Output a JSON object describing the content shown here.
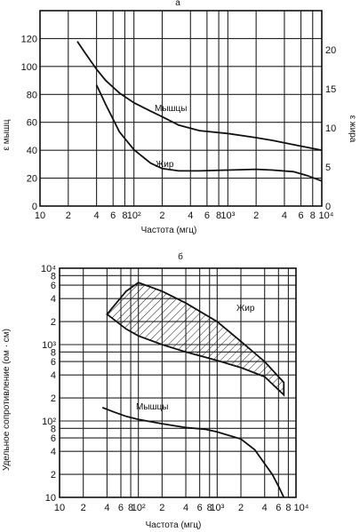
{
  "chart_data": [
    {
      "type": "line",
      "panel_label": "а",
      "xlabel": "Частота (мгц)",
      "ylabel_left": "ε мышц",
      "ylabel_right": "ε жира",
      "x_scale": "log",
      "xlim": [
        10,
        10000
      ],
      "ylim_left": [
        0,
        140
      ],
      "ylim_right": [
        0,
        25
      ],
      "x_tick_labels": [
        {
          "v": 10,
          "t": "10"
        },
        {
          "v": 20,
          "t": "2"
        },
        {
          "v": 40,
          "t": "4"
        },
        {
          "v": 60,
          "t": "6"
        },
        {
          "v": 80,
          "t": "8"
        },
        {
          "v": 100,
          "t": "10²"
        },
        {
          "v": 200,
          "t": "2"
        },
        {
          "v": 400,
          "t": "4"
        },
        {
          "v": 600,
          "t": "6"
        },
        {
          "v": 800,
          "t": "8"
        },
        {
          "v": 1000,
          "t": "10³"
        },
        {
          "v": 2000,
          "t": "2"
        },
        {
          "v": 4000,
          "t": "4"
        },
        {
          "v": 6000,
          "t": "6"
        },
        {
          "v": 8000,
          "t": "8"
        },
        {
          "v": 10000,
          "t": "10⁴"
        }
      ],
      "y_left_ticks": [
        "0",
        "20",
        "40",
        "60",
        "80",
        "100",
        "120"
      ],
      "y_right_ticks": [
        "0",
        "5",
        "10",
        "15",
        "20"
      ],
      "series": [
        {
          "name": "Мышцы",
          "axis": "left",
          "x": [
            25,
            30,
            40,
            50,
            70,
            100,
            150,
            200,
            300,
            500,
            1000,
            2000,
            3000,
            5000,
            10000
          ],
          "y": [
            118,
            110,
            98,
            90,
            81,
            74,
            68,
            64,
            58,
            54,
            52,
            49,
            47,
            44,
            40
          ]
        },
        {
          "name": "Жир",
          "axis": "right",
          "x": [
            40,
            50,
            70,
            100,
            150,
            200,
            300,
            500,
            1000,
            2000,
            3000,
            5000,
            7000,
            10000
          ],
          "y": [
            15.5,
            13,
            9.5,
            7.2,
            5.5,
            4.8,
            4.5,
            4.5,
            4.6,
            4.7,
            4.6,
            4.4,
            3.9,
            3.2
          ]
        }
      ]
    },
    {
      "type": "area",
      "panel_label": "б",
      "xlabel": "Частота (мгц)",
      "ylabel": "Удельное  сопротивление  (ом · см)",
      "x_scale": "log",
      "y_scale": "log",
      "xlim": [
        10,
        10000
      ],
      "ylim": [
        10,
        10000
      ],
      "x_tick_labels": [
        {
          "v": 10,
          "t": "10"
        },
        {
          "v": 20,
          "t": "2"
        },
        {
          "v": 40,
          "t": "4"
        },
        {
          "v": 60,
          "t": "6"
        },
        {
          "v": 80,
          "t": "8"
        },
        {
          "v": 100,
          "t": "10²"
        },
        {
          "v": 200,
          "t": "2"
        },
        {
          "v": 400,
          "t": "4"
        },
        {
          "v": 600,
          "t": "6"
        },
        {
          "v": 800,
          "t": "8"
        },
        {
          "v": 1000,
          "t": "10³"
        },
        {
          "v": 2000,
          "t": "2"
        },
        {
          "v": 4000,
          "t": "4"
        },
        {
          "v": 6000,
          "t": "6"
        },
        {
          "v": 8000,
          "t": "8"
        },
        {
          "v": 10000,
          "t": "10⁴"
        }
      ],
      "y_tick_labels": [
        {
          "v": 10,
          "t": "10"
        },
        {
          "v": 20,
          "t": "2"
        },
        {
          "v": 40,
          "t": "4"
        },
        {
          "v": 60,
          "t": "6"
        },
        {
          "v": 80,
          "t": "8"
        },
        {
          "v": 100,
          "t": "10²"
        },
        {
          "v": 200,
          "t": "2"
        },
        {
          "v": 400,
          "t": "4"
        },
        {
          "v": 600,
          "t": "6"
        },
        {
          "v": 800,
          "t": "8"
        },
        {
          "v": 1000,
          "t": "10³"
        },
        {
          "v": 2000,
          "t": "2"
        },
        {
          "v": 4000,
          "t": "4"
        },
        {
          "v": 6000,
          "t": "6"
        },
        {
          "v": 8000,
          "t": "8"
        },
        {
          "v": 10000,
          "t": "10⁴"
        }
      ],
      "band": {
        "name": "Жир",
        "upper": {
          "x": [
            40,
            70,
            100,
            200,
            400,
            1000,
            2000,
            4000,
            7000
          ],
          "y": [
            2500,
            5000,
            6500,
            5000,
            3500,
            2000,
            1100,
            600,
            320
          ]
        },
        "lower": {
          "x": [
            40,
            70,
            100,
            200,
            400,
            1000,
            2000,
            4000,
            7000
          ],
          "y": [
            2500,
            1600,
            1300,
            1000,
            800,
            620,
            500,
            380,
            220
          ]
        }
      },
      "series": [
        {
          "name": "Мышцы",
          "x": [
            35,
            50,
            70,
            100,
            200,
            400,
            700,
            1000,
            2000,
            3000,
            5000,
            6000,
            7000
          ],
          "y": [
            150,
            130,
            115,
            105,
            92,
            82,
            78,
            72,
            58,
            42,
            20,
            14,
            10
          ]
        }
      ]
    }
  ]
}
